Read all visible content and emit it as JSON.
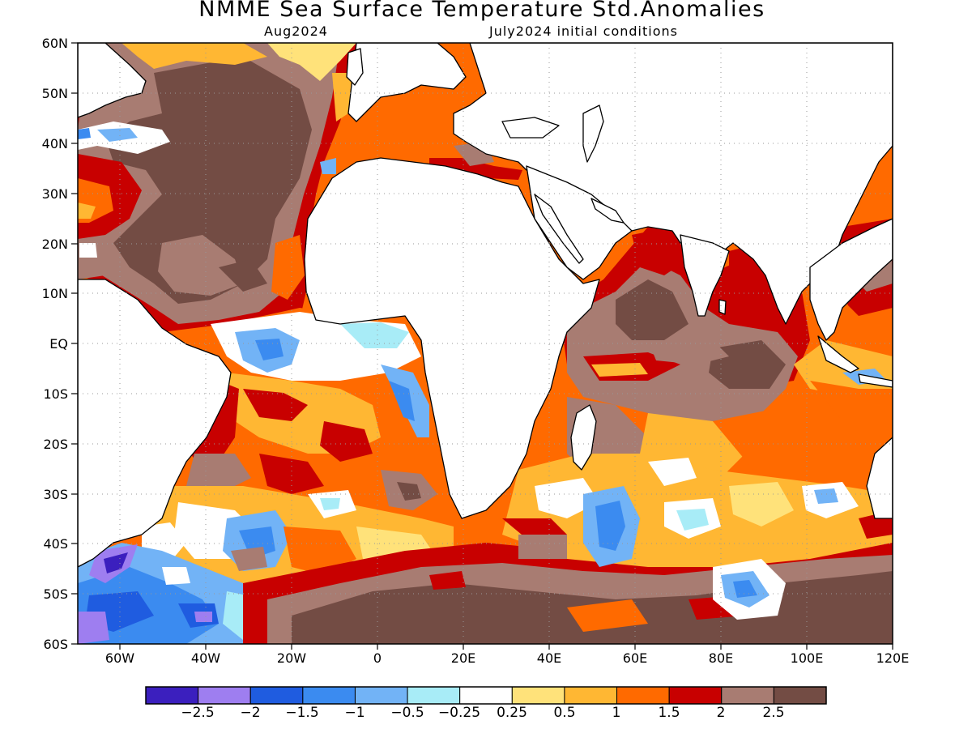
{
  "header": {
    "title": "NMME Sea Surface Temperature Std.Anomalies",
    "target_month": "Aug2024",
    "initial_conditions": "July2024 initial conditions"
  },
  "axes": {
    "y_labels": [
      "60N",
      "50N",
      "40N",
      "30N",
      "20N",
      "10N",
      "EQ",
      "10S",
      "20S",
      "30S",
      "40S",
      "50S",
      "60S"
    ],
    "x_labels": [
      "60W",
      "40W",
      "20W",
      "0",
      "20E",
      "40E",
      "60E",
      "80E",
      "100E",
      "120E"
    ],
    "lon_range": [
      -70,
      120
    ],
    "lat_range": [
      -60,
      60
    ],
    "grid": "dotted"
  },
  "colorbar": {
    "colors": [
      "#3b1fbe",
      "#9e7ef0",
      "#1f5ce0",
      "#3b8bf0",
      "#72b3f6",
      "#a8ecf7",
      "#ffffff",
      "#ffe27a",
      "#ffb733",
      "#ff6a00",
      "#c80000",
      "#a87c72",
      "#734c44"
    ],
    "tick_labels": [
      "-2.5",
      "-2",
      "-1.5",
      "-1",
      "-0.5",
      "-0.25",
      "0.25",
      "0.5",
      "1",
      "1.5",
      "2",
      "2.5"
    ]
  },
  "anomaly_regions": [
    {
      "area": "North Atlantic subtropical gyre",
      "class": "2.5"
    },
    {
      "area": "Northwest Atlantic near Newfoundland",
      "class": "-1"
    },
    {
      "area": "Eastern tropical Atlantic (Gulf of Guinea)",
      "class": "-1"
    },
    {
      "area": "Benguela coast",
      "class": "-0.5"
    },
    {
      "area": "Mediterranean Sea",
      "class": "1.5"
    },
    {
      "area": "Arabian Sea / Bay of Bengal",
      "class": "2"
    },
    {
      "area": "Central Indian Ocean",
      "class": "2.5"
    },
    {
      "area": "Southwest Atlantic off Argentina",
      "class": "-2"
    },
    {
      "area": "Southern Ocean 40S-60S",
      "class": "2.5"
    },
    {
      "area": "Southern Indian Ocean near 45S 85E",
      "class": "-1"
    }
  ]
}
